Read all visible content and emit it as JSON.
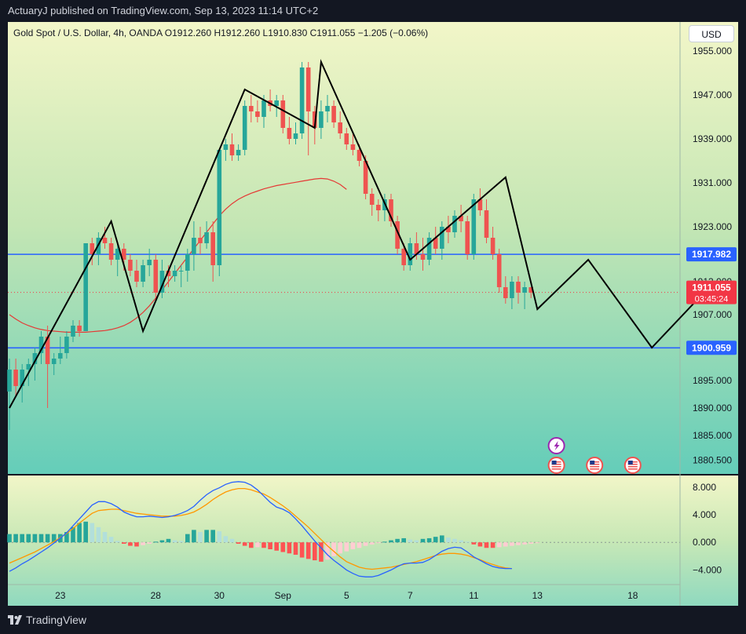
{
  "header": {
    "published_by": "ActuaryJ published on TradingView.com, Sep 13, 2023 11:14 UTC+2"
  },
  "legend": {
    "text": "Gold Spot / U.S. Dollar, 4h, OANDA  O1912.260  H1912.260  L1910.830  C1911.055  −1.205 (−0.06%)"
  },
  "currency_button": "USD",
  "footer": {
    "brand": "TradingView"
  },
  "colors": {
    "up": "#26a69a",
    "down": "#ef5350",
    "level_line": "#2962ff",
    "ma_line": "#e53935",
    "macd_line": "#2962ff",
    "signal_line": "#ff9800",
    "price_tag": "#f23645"
  },
  "events": [
    {
      "icon": "lightning-icon",
      "date_index": 86
    },
    {
      "icon": "us-flag-icon",
      "date_index": 86
    },
    {
      "icon": "us-flag-icon",
      "date_index": 92
    },
    {
      "icon": "us-flag-icon",
      "date_index": 98
    }
  ],
  "chart_data": [
    {
      "type": "candlestick",
      "title": "Gold Spot / U.S. Dollar, 4h, OANDA",
      "ylim": [
        1878,
        1960
      ],
      "y_ticks": [
        "1955.000",
        "1947.000",
        "1939.000",
        "1931.000",
        "1923.000",
        "1913.000",
        "1907.000",
        "1895.000",
        "1890.000",
        "1885.000",
        "1880.500"
      ],
      "x_ticks": [
        {
          "label": "23",
          "index": 8
        },
        {
          "label": "28",
          "index": 23
        },
        {
          "label": "30",
          "index": 33
        },
        {
          "label": "Sep",
          "index": 43
        },
        {
          "label": "5",
          "index": 53
        },
        {
          "label": "7",
          "index": 63
        },
        {
          "label": "11",
          "index": 73
        },
        {
          "label": "13",
          "index": 83
        },
        {
          "label": "18",
          "index": 98
        }
      ],
      "candles": [
        [
          1893,
          1899,
          1886,
          1897
        ],
        [
          1897,
          1899,
          1892,
          1894
        ],
        [
          1894,
          1898,
          1891,
          1897
        ],
        [
          1897,
          1899,
          1894,
          1898
        ],
        [
          1898,
          1901,
          1895,
          1900
        ],
        [
          1900,
          1904,
          1898,
          1903
        ],
        [
          1903,
          1905,
          1890,
          1898
        ],
        [
          1898,
          1900,
          1896,
          1899
        ],
        [
          1899,
          1903,
          1898,
          1900
        ],
        [
          1900,
          1904,
          1899,
          1903
        ],
        [
          1903,
          1906,
          1902,
          1905
        ],
        [
          1905,
          1906,
          1903,
          1904
        ],
        [
          1904,
          1920,
          1904,
          1920
        ],
        [
          1920,
          1921,
          1916,
          1918
        ],
        [
          1918,
          1922,
          1916,
          1921
        ],
        [
          1921,
          1923,
          1919,
          1920
        ],
        [
          1920,
          1921,
          1916,
          1917
        ],
        [
          1917,
          1920,
          1914,
          1919
        ],
        [
          1919,
          1920,
          1915,
          1917
        ],
        [
          1917,
          1918,
          1914,
          1915
        ],
        [
          1915,
          1917,
          1912,
          1913
        ],
        [
          1913,
          1917,
          1912,
          1916
        ],
        [
          1916,
          1919,
          1914,
          1917
        ],
        [
          1917,
          1918,
          1910,
          1911
        ],
        [
          1911,
          1917,
          1910,
          1915
        ],
        [
          1915,
          1916,
          1912,
          1914
        ],
        [
          1914,
          1916,
          1913,
          1915
        ],
        [
          1915,
          1916,
          1912,
          1915
        ],
        [
          1915,
          1919,
          1913,
          1918
        ],
        [
          1918,
          1924,
          1915,
          1921
        ],
        [
          1921,
          1923,
          1918,
          1920
        ],
        [
          1920,
          1924,
          1919,
          1922
        ],
        [
          1922,
          1924,
          1913,
          1916
        ],
        [
          1916,
          1937,
          1914,
          1937
        ],
        [
          1937,
          1939,
          1935,
          1938
        ],
        [
          1938,
          1940,
          1935,
          1936
        ],
        [
          1936,
          1938,
          1935,
          1937
        ],
        [
          1937,
          1946,
          1936,
          1945
        ],
        [
          1945,
          1947,
          1942,
          1944
        ],
        [
          1944,
          1946,
          1942,
          1943
        ],
        [
          1943,
          1947,
          1941,
          1946
        ],
        [
          1946,
          1948,
          1944,
          1945
        ],
        [
          1945,
          1947,
          1943,
          1946
        ],
        [
          1946,
          1947,
          1940,
          1941
        ],
        [
          1941,
          1943,
          1938,
          1939
        ],
        [
          1939,
          1942,
          1938,
          1940
        ],
        [
          1940,
          1953,
          1939,
          1952
        ],
        [
          1952,
          1953,
          1936,
          1944
        ],
        [
          1944,
          1945,
          1938,
          1941
        ],
        [
          1941,
          1946,
          1939,
          1944
        ],
        [
          1944,
          1947,
          1942,
          1945
        ],
        [
          1945,
          1946,
          1941,
          1942
        ],
        [
          1942,
          1944,
          1939,
          1940
        ],
        [
          1940,
          1941,
          1937,
          1938
        ],
        [
          1938,
          1940,
          1936,
          1937
        ],
        [
          1937,
          1938,
          1934,
          1935
        ],
        [
          1935,
          1936,
          1928,
          1929
        ],
        [
          1929,
          1930,
          1925,
          1927
        ],
        [
          1927,
          1928,
          1924,
          1926
        ],
        [
          1926,
          1929,
          1924,
          1928
        ],
        [
          1928,
          1929,
          1923,
          1924
        ],
        [
          1924,
          1925,
          1918,
          1919
        ],
        [
          1919,
          1920,
          1915,
          1916
        ],
        [
          1916,
          1921,
          1915,
          1920
        ],
        [
          1920,
          1922,
          1917,
          1918
        ],
        [
          1918,
          1921,
          1915,
          1917
        ],
        [
          1917,
          1922,
          1916,
          1921
        ],
        [
          1921,
          1923,
          1918,
          1919
        ],
        [
          1919,
          1924,
          1917,
          1923
        ],
        [
          1923,
          1925,
          1920,
          1922
        ],
        [
          1922,
          1926,
          1921,
          1925
        ],
        [
          1925,
          1927,
          1922,
          1924
        ],
        [
          1924,
          1925,
          1917,
          1918
        ],
        [
          1918,
          1929,
          1917,
          1928
        ],
        [
          1928,
          1930,
          1925,
          1926
        ],
        [
          1926,
          1928,
          1920,
          1921
        ],
        [
          1921,
          1923,
          1917,
          1918
        ],
        [
          1918,
          1919,
          1911,
          1912
        ],
        [
          1912,
          1914,
          1909,
          1910
        ],
        [
          1910,
          1914,
          1908,
          1913
        ],
        [
          1913,
          1914,
          1909,
          1911
        ],
        [
          1911,
          1913,
          1908,
          1912
        ],
        [
          1912,
          1912,
          1910,
          1911
        ]
      ],
      "moving_average": [
        1907,
        1906.2,
        1905.5,
        1905,
        1904.6,
        1904.3,
        1904.1,
        1904,
        1903.9,
        1903.8,
        1903.8,
        1903.8,
        1903.8,
        1903.9,
        1904,
        1904.1,
        1904.3,
        1904.6,
        1905,
        1905.6,
        1906.4,
        1907.4,
        1908.6,
        1910,
        1911.5,
        1913,
        1914.5,
        1916,
        1917.5,
        1919,
        1920.5,
        1922,
        1923.5,
        1925,
        1926.2,
        1927.2,
        1928,
        1928.6,
        1929.1,
        1929.5,
        1929.9,
        1930.2,
        1930.5,
        1930.7,
        1930.9,
        1931.1,
        1931.3,
        1931.5,
        1931.7,
        1931.8,
        1931.7,
        1931.3,
        1930.7,
        1929.8
      ],
      "horizontal_levels": [
        1917.982,
        1900.959
      ],
      "current_price": {
        "value": 1911.055,
        "label": "1911.055",
        "countdown": "03:45:24"
      },
      "level_labels": [
        "1917.982",
        "1900.959"
      ],
      "pattern_path": [
        [
          0,
          1890
        ],
        [
          16,
          1924
        ],
        [
          21,
          1904
        ],
        [
          37,
          1948
        ],
        [
          48,
          1941
        ],
        [
          49,
          1953
        ],
        [
          63,
          1917
        ],
        [
          78,
          1932
        ],
        [
          83,
          1908
        ],
        [
          91,
          1917
        ],
        [
          101,
          1901
        ],
        [
          110,
          1912
        ]
      ]
    },
    {
      "type": "macd",
      "ylim": [
        -6,
        9
      ],
      "y_ticks": [
        "8.000",
        "4.000",
        "0.000",
        "−4.000"
      ],
      "histogram": [
        1.2,
        1.2,
        1.2,
        1.2,
        1.2,
        1.2,
        1.2,
        1.2,
        1.2,
        1.5,
        2.2,
        2.8,
        3.0,
        2.8,
        2.2,
        1.5,
        0.8,
        0.2,
        -0.2,
        -0.5,
        -0.6,
        -0.4,
        -0.2,
        0.1,
        0.3,
        0.5,
        0.3,
        0.2,
        1.2,
        1.8,
        1.5,
        1.8,
        1.8,
        1.6,
        0.9,
        0.5,
        -0.2,
        -0.5,
        -0.8,
        -0.7,
        -0.8,
        -1.0,
        -1.2,
        -1.4,
        -1.6,
        -1.8,
        -2.2,
        -2.4,
        -2.6,
        -2.8,
        -2.5,
        -2.0,
        -1.6,
        -1.3,
        -1.0,
        -0.8,
        -0.5,
        -0.3,
        -0.1,
        0.1,
        0.3,
        0.5,
        0.6,
        0.4,
        0.3,
        0.5,
        0.6,
        0.8,
        1.0,
        0.7,
        0.5,
        0.3,
        0.1,
        -0.3,
        -0.6,
        -0.8,
        -0.8,
        -0.7,
        -0.6,
        -0.5,
        -0.4,
        -0.3,
        -0.2,
        -0.1
      ],
      "macd": [
        -4.2,
        -3.7,
        -3.1,
        -2.6,
        -2.0,
        -1.4,
        -0.8,
        -0.1,
        0.6,
        1.4,
        2.4,
        3.4,
        4.4,
        5.4,
        5.9,
        5.9,
        5.6,
        5.1,
        4.4,
        4.0,
        3.7,
        3.7,
        3.8,
        3.7,
        3.6,
        3.7,
        3.9,
        4.2,
        4.6,
        5.2,
        6.1,
        6.9,
        7.5,
        7.9,
        8.4,
        8.7,
        8.8,
        8.7,
        8.3,
        7.6,
        6.7,
        5.8,
        5.1,
        4.8,
        4.3,
        3.4,
        2.4,
        1.3,
        0.2,
        -0.8,
        -1.8,
        -2.6,
        -3.3,
        -4.0,
        -4.5,
        -4.9,
        -5.0,
        -5.0,
        -4.8,
        -4.4,
        -4.0,
        -3.5,
        -3.1,
        -3.0,
        -3.0,
        -2.9,
        -2.5,
        -1.9,
        -1.3,
        -0.9,
        -0.7,
        -0.8,
        -1.4,
        -2.1,
        -2.6,
        -3.1,
        -3.5,
        -3.7,
        -3.8,
        -3.8
      ],
      "signal": [
        -3.0,
        -2.6,
        -2.2,
        -1.8,
        -1.4,
        -0.9,
        -0.4,
        0.1,
        0.7,
        1.3,
        2.0,
        2.8,
        3.5,
        4.2,
        4.6,
        4.7,
        4.8,
        4.8,
        4.6,
        4.4,
        4.2,
        4.1,
        4.0,
        3.9,
        3.8,
        3.8,
        3.8,
        3.9,
        4.1,
        4.4,
        4.9,
        5.5,
        6.2,
        6.8,
        7.3,
        7.6,
        7.8,
        7.8,
        7.6,
        7.3,
        7.0,
        6.5,
        5.9,
        5.3,
        4.6,
        3.8,
        3.0,
        2.2,
        1.3,
        0.4,
        -0.5,
        -1.3,
        -2.1,
        -2.8,
        -3.2,
        -3.6,
        -3.8,
        -3.9,
        -3.8,
        -3.7,
        -3.6,
        -3.4,
        -3.2,
        -3.0,
        -2.8,
        -2.5,
        -2.2,
        -1.9,
        -1.7,
        -1.6,
        -1.6,
        -1.7,
        -1.9,
        -2.2,
        -2.5,
        -2.9,
        -3.2,
        -3.5,
        -3.7,
        -3.8
      ]
    }
  ]
}
